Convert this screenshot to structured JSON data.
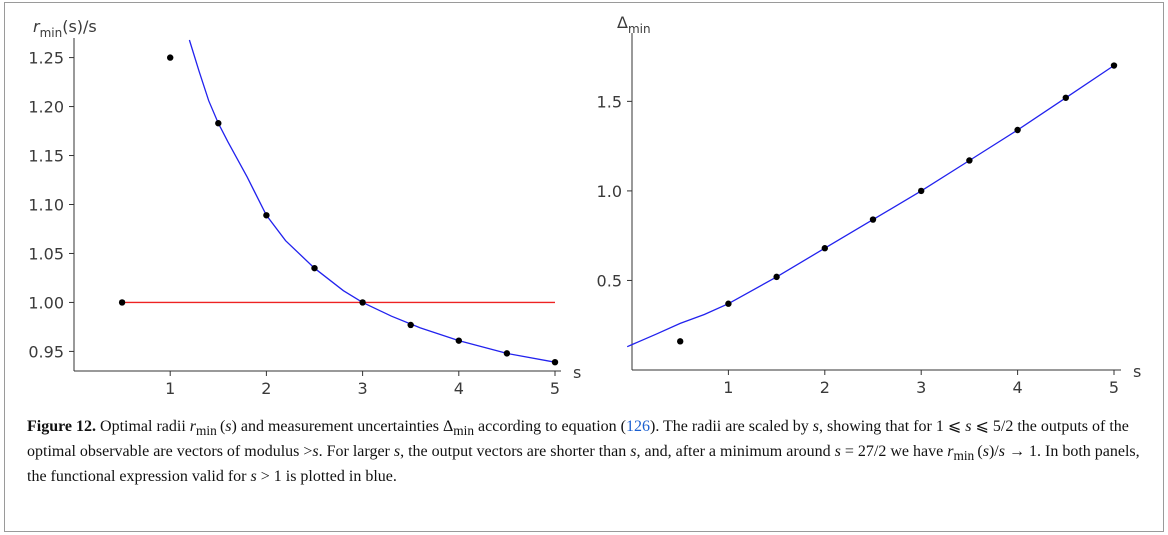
{
  "chart_data": [
    {
      "type": "scatter",
      "ylabel_html": "r<sub>min</sub>(s)/s",
      "ylabel": "rmin(s)/s",
      "xlabel": "s",
      "xlim": [
        0,
        5
      ],
      "ylim": [
        0.93,
        1.27
      ],
      "x_ticks": [
        "1",
        "2",
        "3",
        "4",
        "5"
      ],
      "y_ticks": [
        "0.95",
        "1.00",
        "1.05",
        "1.10",
        "1.15",
        "1.20",
        "1.25"
      ],
      "points": {
        "x": [
          0.5,
          1,
          1.5,
          2,
          2.5,
          3,
          3.5,
          4,
          4.5,
          5
        ],
        "y": [
          1.0,
          1.25,
          1.183,
          1.089,
          1.035,
          1.0,
          0.977,
          0.961,
          0.948,
          0.939
        ]
      },
      "curve": {
        "x": [
          1.2,
          1.3,
          1.4,
          1.5,
          1.6,
          1.8,
          2.0,
          2.2,
          2.5,
          2.8,
          3.0,
          3.3,
          3.6,
          4.0,
          4.5,
          5.0
        ],
        "y": [
          1.268,
          1.236,
          1.206,
          1.183,
          1.164,
          1.128,
          1.089,
          1.063,
          1.035,
          1.012,
          1.0,
          0.986,
          0.974,
          0.961,
          0.948,
          0.939
        ]
      },
      "reference_line": {
        "y": 1.0,
        "x_start": 0.5,
        "x_end": 5.0
      },
      "colors": {
        "points": "#000000",
        "curve": "#2222ee",
        "reference_line": "#ee2222"
      }
    },
    {
      "type": "scatter",
      "ylabel": "Δmin",
      "ylabel_base": "Δ",
      "ylabel_sub": "min",
      "xlabel": "s",
      "xlim": [
        0,
        5
      ],
      "ylim": [
        0.0,
        1.77
      ],
      "x_ticks": [
        "1",
        "2",
        "3",
        "4",
        "5"
      ],
      "y_ticks": [
        "0.5",
        "1.0",
        "1.5"
      ],
      "points": {
        "x": [
          0.5,
          1,
          1.5,
          2,
          2.5,
          3,
          3.5,
          4,
          4.5,
          5
        ],
        "y": [
          0.16,
          0.37,
          0.52,
          0.68,
          0.84,
          1.0,
          1.17,
          1.34,
          1.52,
          1.7
        ]
      },
      "curve": {
        "x": [
          -0.05,
          0.25,
          0.5,
          0.75,
          1.0,
          1.5,
          2.0,
          2.5,
          3.0,
          3.5,
          4.0,
          4.5,
          5.0
        ],
        "y": [
          0.13,
          0.2,
          0.26,
          0.31,
          0.37,
          0.52,
          0.68,
          0.84,
          1.0,
          1.17,
          1.34,
          1.52,
          1.7
        ]
      },
      "colors": {
        "points": "#000000",
        "curve": "#2222ee"
      }
    }
  ],
  "caption": {
    "label": "Figure 12.",
    "equation_ref": "126",
    "html": "Optimal radii <i>r</i><sub>min</sub>&thinsp;(<i>s</i>) and measurement uncertainties Δ<sub>min</sub> according to equation (<span class=\"ref\">126</span>). The radii are scaled by <i>s</i>, showing that for 1 ⩽ <i>s</i> ⩽ 5/2 the outputs of the optimal observable are vectors of modulus &gt;<i>s</i>. For larger <i>s</i>, the output vectors are shorter than <i>s</i>, and, after a minimum around <i>s</i> = 27/2 we have <i>r</i><sub>min</sub>&thinsp;(<i>s</i>)/<i>s</i> → 1. In both panels, the functional expression valid for <i>s</i> &gt; 1 is plotted in blue."
  }
}
